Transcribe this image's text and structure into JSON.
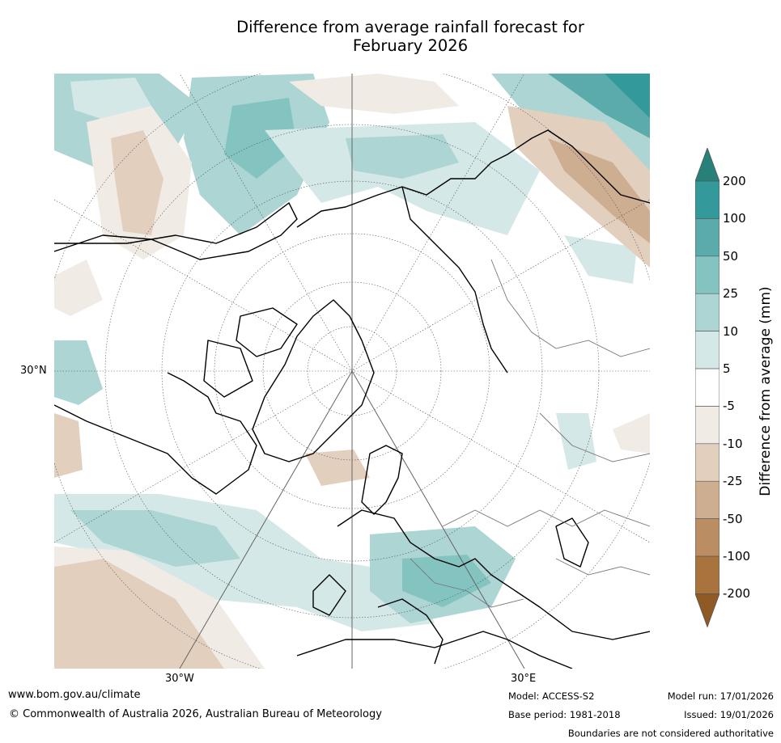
{
  "title": {
    "line1": "Difference from average rainfall forecast for",
    "line2": "February 2026"
  },
  "map": {
    "projection": "north-polar-stereographic",
    "grid_labels": {
      "lat_30n": "30°N",
      "lon_30w": "30°W",
      "lon_30e": "30°E"
    }
  },
  "colorbar": {
    "label": "Difference from average (mm)",
    "ticks": [
      "200",
      "100",
      "50",
      "25",
      "10",
      "5",
      "-5",
      "-10",
      "-25",
      "-50",
      "-100",
      "-200"
    ],
    "bins": [
      {
        "range": "> 200",
        "color": "#27807a"
      },
      {
        "range": "100 to 200",
        "color": "#33999a"
      },
      {
        "range": "50 to 100",
        "color": "#5aabaa"
      },
      {
        "range": "25 to 50",
        "color": "#83c3c0"
      },
      {
        "range": "10 to 25",
        "color": "#acd5d3"
      },
      {
        "range": "5 to 10",
        "color": "#d3e8e7"
      },
      {
        "range": "-5 to 5",
        "color": "#ffffff"
      },
      {
        "range": "-10 to -5",
        "color": "#f1ebe5"
      },
      {
        "range": "-25 to -10",
        "color": "#e2cfbe"
      },
      {
        "range": "-50 to -25",
        "color": "#cdae91"
      },
      {
        "range": "-100 to -50",
        "color": "#bb8d62"
      },
      {
        "range": "-200 to -100",
        "color": "#a8733c"
      },
      {
        "range": "< -200",
        "color": "#8f5a25"
      }
    ]
  },
  "footer": {
    "website": "www.bom.gov.au/climate",
    "copyright": "© Commonwealth of Australia 2026, Australian Bureau of Meteorology",
    "model": "Model: ACCESS-S2",
    "base_period": "Base period: 1981-2018",
    "model_run": "Model run: 17/01/2026",
    "issued": "Issued: 19/01/2026",
    "disclaimer": "Boundaries are not considered authoritative"
  }
}
